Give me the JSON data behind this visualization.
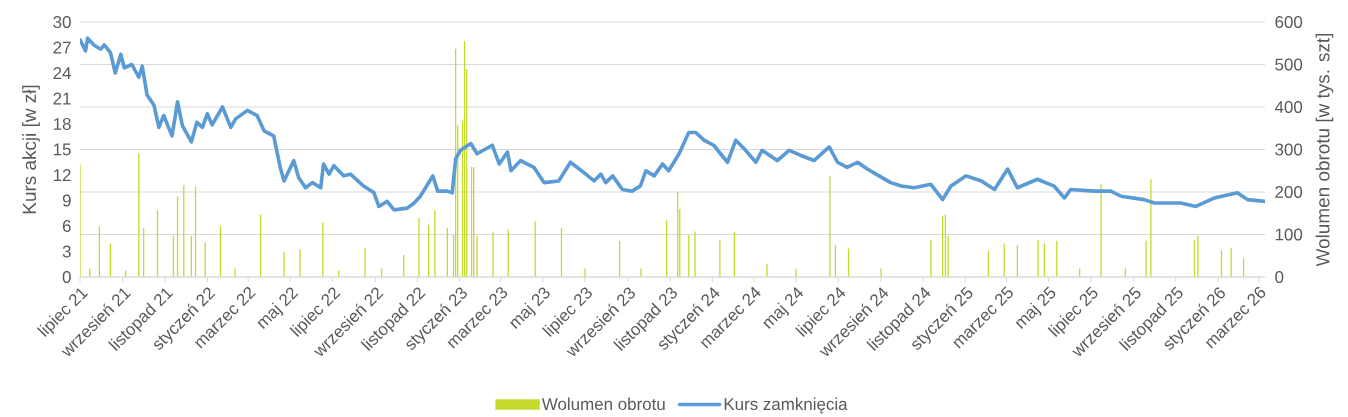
{
  "chart_data": {
    "type": "line",
    "xlabel": null,
    "ylabel": "Kurs akcji [w zł]",
    "y2label": "Wolumen obrotu [w tys. szt]",
    "xlim": [
      "2021-07-01",
      "2026-03-10"
    ],
    "xticks": [
      {
        "value": "2021-07",
        "label": "lipiec 21"
      },
      {
        "value": "2021-09",
        "label": "wrzesień 21"
      },
      {
        "value": "2021-11",
        "label": "listopad 21"
      },
      {
        "value": "2022-01",
        "label": "styczeń 22"
      },
      {
        "value": "2022-03",
        "label": "marzec 22"
      },
      {
        "value": "2022-05",
        "label": "maj 22"
      },
      {
        "value": "2022-07",
        "label": "lipiec 22"
      },
      {
        "value": "2022-09",
        "label": "wrzesień 22"
      },
      {
        "value": "2022-11",
        "label": "listopad 22"
      },
      {
        "value": "2023-01",
        "label": "styczeń 23"
      },
      {
        "value": "2023-03",
        "label": "marzec 23"
      },
      {
        "value": "2023-05",
        "label": "maj 23"
      },
      {
        "value": "2023-07",
        "label": "lipiec 23"
      },
      {
        "value": "2023-09",
        "label": "wrzesień 23"
      },
      {
        "value": "2023-11",
        "label": "listopad 23"
      },
      {
        "value": "2024-01",
        "label": "styczeń 24"
      },
      {
        "value": "2024-03",
        "label": "marzec 24"
      },
      {
        "value": "2024-05",
        "label": "maj 24"
      },
      {
        "value": "2024-07",
        "label": "lipiec 24"
      },
      {
        "value": "2024-09",
        "label": "wrzesień 24"
      },
      {
        "value": "2024-11",
        "label": "listopad 24"
      },
      {
        "value": "2025-01",
        "label": "styczeń 25"
      },
      {
        "value": "2025-03",
        "label": "marzec 25"
      },
      {
        "value": "2025-05",
        "label": "maj 25"
      },
      {
        "value": "2025-07",
        "label": "lipiec 25"
      },
      {
        "value": "2025-09",
        "label": "wrzesień 25"
      },
      {
        "value": "2025-11",
        "label": "listopad 25"
      },
      {
        "value": "2026-01",
        "label": "styczeń 26"
      },
      {
        "value": "2026-03",
        "label": "marzec 26"
      }
    ],
    "ylim": [
      0,
      30
    ],
    "yticks": [
      0,
      3,
      6,
      9,
      12,
      15,
      18,
      21,
      24,
      27,
      30
    ],
    "y2lim": [
      0,
      600
    ],
    "y2ticks": [
      0,
      100,
      200,
      300,
      400,
      500,
      600
    ],
    "grid": "y",
    "legend": "bottom",
    "series": [
      {
        "name": "Wolumen obrotu",
        "type": "bar",
        "axis": "y2",
        "color": "#c5d92f",
        "x": [
          "2021-07-01",
          "2021-07-15",
          "2021-07-29",
          "2021-08-14",
          "2021-09-05",
          "2021-09-24",
          "2021-10-01",
          "2021-10-21",
          "2021-11-13",
          "2021-11-19",
          "2021-11-28",
          "2021-12-09",
          "2021-12-15",
          "2021-12-29",
          "2022-01-20",
          "2022-02-10",
          "2022-03-19",
          "2022-04-22",
          "2022-05-15",
          "2022-06-17",
          "2022-07-10",
          "2022-08-17",
          "2022-09-10",
          "2022-10-12",
          "2022-11-03",
          "2022-11-17",
          "2022-11-26",
          "2022-12-14",
          "2022-12-23",
          "2022-12-26",
          "2022-12-29",
          "2023-01-05",
          "2023-01-08",
          "2023-01-11",
          "2023-01-18",
          "2023-01-21",
          "2023-01-26",
          "2023-02-18",
          "2023-03-12",
          "2023-04-20",
          "2023-05-28",
          "2023-07-01",
          "2023-08-20",
          "2023-09-20",
          "2023-10-27",
          "2023-11-12",
          "2023-11-15",
          "2023-11-28",
          "2023-12-07",
          "2024-01-12",
          "2024-02-02",
          "2024-03-20",
          "2024-05-01",
          "2024-06-19",
          "2024-06-27",
          "2024-07-16",
          "2024-09-01",
          "2024-11-12",
          "2024-11-29",
          "2024-12-03",
          "2024-12-07",
          "2025-02-03",
          "2025-02-26",
          "2025-03-17",
          "2025-04-16",
          "2025-04-25",
          "2025-05-13",
          "2025-06-15",
          "2025-07-16",
          "2025-08-20",
          "2025-09-19",
          "2025-09-26",
          "2025-11-28",
          "2025-12-03",
          "2026-01-06",
          "2026-01-20",
          "2026-02-07"
        ],
        "values": [
          265,
          20,
          119,
          79,
          15,
          291,
          115,
          157,
          97,
          190,
          216,
          97,
          212,
          82,
          120,
          20,
          147,
          59,
          65,
          128,
          15,
          69,
          20,
          52,
          139,
          123,
          157,
          115,
          99,
          537,
          357,
          369,
          555,
          489,
          259,
          259,
          97,
          105,
          111,
          131,
          115,
          20,
          85,
          20,
          133,
          200,
          160,
          99,
          107,
          87,
          105,
          30,
          20,
          238,
          75,
          67,
          20,
          87,
          144,
          147,
          97,
          62,
          79,
          75,
          87,
          79,
          85,
          20,
          218,
          20,
          85,
          230,
          87,
          97,
          63,
          69,
          44
        ]
      },
      {
        "name": "Kurs zamknięcia",
        "color": "#5b9bd5",
        "x": [
          "2021-07-01",
          "2021-07-09",
          "2021-07-12",
          "2021-07-21",
          "2021-07-31",
          "2021-08-05",
          "2021-08-14",
          "2021-08-21",
          "2021-08-29",
          "2021-09-03",
          "2021-09-14",
          "2021-09-24",
          "2021-09-29",
          "2021-10-06",
          "2021-10-16",
          "2021-10-23",
          "2021-10-30",
          "2021-11-11",
          "2021-11-19",
          "2021-11-26",
          "2021-12-09",
          "2021-12-17",
          "2021-12-25",
          "2022-01-01",
          "2022-01-08",
          "2022-01-23",
          "2022-02-04",
          "2022-02-11",
          "2022-02-28",
          "2022-03-14",
          "2022-03-24",
          "2022-04-07",
          "2022-04-17",
          "2022-04-22",
          "2022-05-06",
          "2022-05-13",
          "2022-05-23",
          "2022-06-02",
          "2022-06-14",
          "2022-06-18",
          "2022-06-26",
          "2022-07-03",
          "2022-07-17",
          "2022-07-27",
          "2022-08-15",
          "2022-08-30",
          "2022-09-06",
          "2022-09-18",
          "2022-09-28",
          "2022-10-17",
          "2022-10-27",
          "2022-11-05",
          "2022-11-23",
          "2022-11-30",
          "2022-12-14",
          "2022-12-21",
          "2022-12-26",
          "2023-01-02",
          "2023-01-17",
          "2023-01-26",
          "2023-02-17",
          "2023-02-27",
          "2023-03-11",
          "2023-03-16",
          "2023-03-30",
          "2023-04-18",
          "2023-05-03",
          "2023-05-24",
          "2023-06-10",
          "2023-06-29",
          "2023-07-14",
          "2023-07-24",
          "2023-07-31",
          "2023-08-10",
          "2023-08-24",
          "2023-09-07",
          "2023-09-19",
          "2023-09-27",
          "2023-10-09",
          "2023-10-21",
          "2023-10-30",
          "2023-11-14",
          "2023-11-28",
          "2023-12-08",
          "2023-12-20",
          "2024-01-03",
          "2024-01-23",
          "2024-02-04",
          "2024-02-16",
          "2024-03-04",
          "2024-03-13",
          "2024-04-04",
          "2024-04-21",
          "2024-05-08",
          "2024-05-27",
          "2024-06-18",
          "2024-06-30",
          "2024-07-14",
          "2024-07-29",
          "2024-08-12",
          "2024-08-29",
          "2024-09-15",
          "2024-09-30",
          "2024-10-19",
          "2024-11-12",
          "2024-11-29",
          "2024-12-11",
          "2025-01-02",
          "2025-01-24",
          "2025-02-12",
          "2025-03-03",
          "2025-03-17",
          "2025-04-15",
          "2025-05-09",
          "2025-05-24",
          "2025-06-02",
          "2025-07-06",
          "2025-07-30",
          "2025-08-14",
          "2025-09-16",
          "2025-10-01",
          "2025-10-15",
          "2025-11-08",
          "2025-11-30",
          "2025-12-27",
          "2026-01-29",
          "2026-02-13",
          "2026-03-10"
        ],
        "values": [
          27.9,
          26.6,
          28.1,
          27.3,
          26.8,
          27.3,
          26.4,
          24.0,
          26.2,
          24.6,
          25.0,
          23.5,
          24.8,
          21.4,
          20.2,
          17.6,
          19.0,
          16.6,
          20.6,
          17.8,
          15.9,
          18.2,
          17.6,
          19.2,
          17.9,
          20.0,
          17.6,
          18.6,
          19.6,
          19.0,
          17.2,
          16.6,
          12.7,
          11.3,
          13.7,
          11.7,
          10.5,
          11.1,
          10.5,
          13.3,
          12.1,
          13.1,
          11.9,
          12.1,
          10.7,
          9.9,
          8.3,
          8.9,
          7.9,
          8.1,
          8.7,
          9.5,
          11.9,
          10.1,
          10.1,
          9.9,
          13.9,
          14.9,
          15.7,
          14.5,
          15.5,
          13.3,
          14.7,
          12.5,
          13.7,
          12.9,
          11.1,
          11.3,
          13.5,
          12.3,
          11.3,
          12.1,
          11.1,
          11.9,
          10.3,
          10.1,
          10.7,
          12.5,
          11.9,
          13.3,
          12.5,
          14.5,
          17.0,
          17.0,
          16.1,
          15.5,
          13.5,
          16.1,
          15.1,
          13.5,
          14.9,
          13.7,
          14.9,
          14.3,
          13.7,
          15.3,
          13.5,
          12.9,
          13.5,
          12.7,
          11.9,
          11.1,
          10.7,
          10.5,
          10.9,
          9.1,
          10.7,
          11.9,
          11.3,
          10.3,
          12.7,
          10.5,
          11.5,
          10.7,
          9.3,
          10.3,
          10.1,
          10.1,
          9.5,
          9.1,
          8.7,
          8.7,
          8.7,
          8.3,
          9.3,
          9.9,
          9.1,
          8.9
        ]
      }
    ]
  }
}
